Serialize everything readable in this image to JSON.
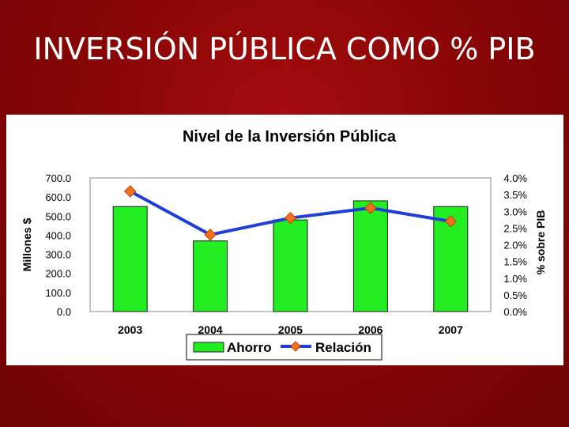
{
  "slide": {
    "title": "INVERSIÓN PÚBLICA COMO % PIB"
  },
  "colors": {
    "bar": "#22ee22",
    "line": "#1f3fd6",
    "marker": "#f07020",
    "marker_edge": "#c04000"
  },
  "chart_data": {
    "type": "bar",
    "title": "Nivel de la Inversión Pública",
    "categories": [
      "2003",
      "2004",
      "2005",
      "2006",
      "2007"
    ],
    "series": [
      {
        "name": "Ahorro",
        "type": "bar",
        "axis": "left",
        "values": [
          550,
          370,
          480,
          580,
          550
        ]
      },
      {
        "name": "Relación",
        "type": "line",
        "axis": "right",
        "values": [
          3.6,
          2.3,
          2.8,
          3.1,
          2.7
        ]
      }
    ],
    "ylabel": "Millones $",
    "ylim": [
      0,
      700
    ],
    "yticks": [
      "700.0",
      "600.0",
      "500.0",
      "400.0",
      "300.0",
      "200.0",
      "100.0",
      "0.0"
    ],
    "y2label": "% sobre PIB",
    "y2lim": [
      0,
      4
    ],
    "y2ticks": [
      "4.0%",
      "3.5%",
      "3.0%",
      "2.5%",
      "2.0%",
      "1.5%",
      "1.0%",
      "0.5%",
      "0.0%"
    ],
    "legend": {
      "position": "bottom",
      "entries": [
        "Ahorro",
        "Relación"
      ]
    }
  }
}
